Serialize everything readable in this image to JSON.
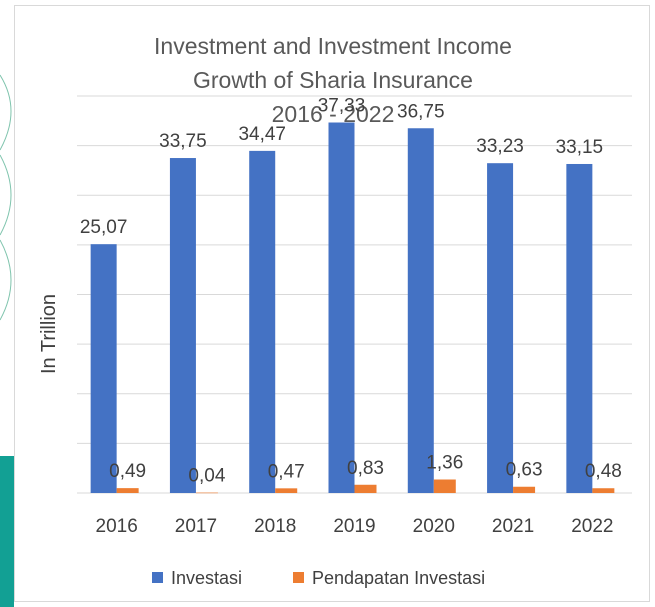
{
  "chart_data": {
    "type": "bar",
    "title_lines": [
      "Investment and Investment Income",
      "Growth of Sharia Insurance",
      "2016 - 2022"
    ],
    "ylabel": "In Trillion",
    "xlabel": "",
    "categories": [
      "2016",
      "2017",
      "2018",
      "2019",
      "2020",
      "2021",
      "2022"
    ],
    "series": [
      {
        "name": "Investasi",
        "color": "#4472c4",
        "values": [
          25.07,
          33.75,
          34.47,
          37.33,
          36.75,
          33.23,
          33.15
        ],
        "labels": [
          "25,07",
          "33,75",
          "34,47",
          "37,33",
          "36,75",
          "33,23",
          "33,15"
        ]
      },
      {
        "name": "Pendapatan Investasi",
        "color": "#ed7d31",
        "values": [
          0.49,
          0.04,
          0.47,
          0.83,
          1.36,
          0.63,
          0.48
        ],
        "labels": [
          "0,49",
          "0,04",
          "0,47",
          "0,83",
          "1,36",
          "0,63",
          "0,48"
        ]
      }
    ],
    "ylim": [
      0,
      40
    ],
    "y_tick_step": 5,
    "y_tick_labels_visible": false,
    "grid": true,
    "legend": "bottom",
    "colors": {
      "gridline": "#d9d9d9",
      "decor": "#2e9e7d"
    }
  }
}
